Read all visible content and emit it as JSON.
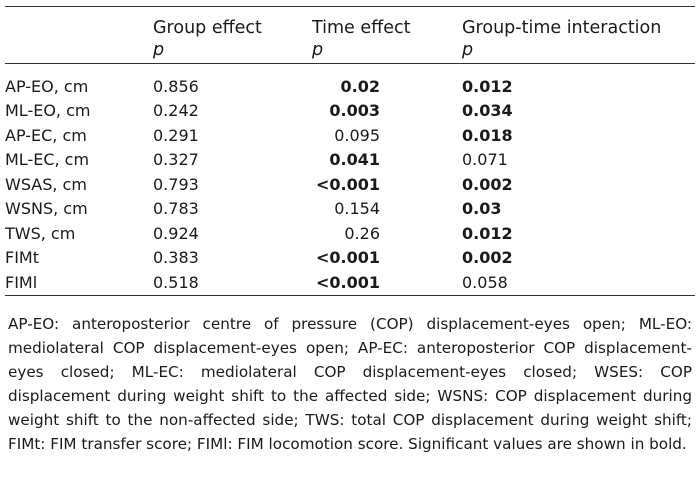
{
  "header": {
    "col1": "Group effect",
    "col2": "Time effect",
    "col3": "Group-time interaction",
    "p": "p"
  },
  "rows": [
    {
      "label": "AP-EO, cm",
      "group": "0.856",
      "time": "0.02",
      "time_bold": true,
      "interaction": "0.012",
      "interaction_bold": true
    },
    {
      "label": "ML-EO, cm",
      "group": "0.242",
      "time": "0.003",
      "time_bold": true,
      "interaction": "0.034",
      "interaction_bold": true
    },
    {
      "label": "AP-EC, cm",
      "group": "0.291",
      "time": "0.095",
      "time_bold": false,
      "interaction": "0.018",
      "interaction_bold": true
    },
    {
      "label": "ML-EC, cm",
      "group": "0.327",
      "time": "0.041",
      "time_bold": true,
      "interaction": "0.071",
      "interaction_bold": false
    },
    {
      "label": "WSAS, cm",
      "group": "0.793",
      "time": "<0.001",
      "time_bold": true,
      "interaction": "0.002",
      "interaction_bold": true
    },
    {
      "label": "WSNS, cm",
      "group": "0.783",
      "time": "0.154",
      "time_bold": false,
      "interaction": "0.03",
      "interaction_bold": true
    },
    {
      "label": "TWS, cm",
      "group": "0.924",
      "time": "0.26",
      "time_bold": false,
      "interaction": "0.012",
      "interaction_bold": true
    },
    {
      "label": "FIMt",
      "group": "0.383",
      "time": "<0.001",
      "time_bold": true,
      "interaction": "0.002",
      "interaction_bold": true
    },
    {
      "label": "FIMl",
      "group": "0.518",
      "time": "<0.001",
      "time_bold": true,
      "interaction": "0.058",
      "interaction_bold": false
    }
  ],
  "footnote": "AP-EO: anteroposterior centre of pressure (COP) displacement-eyes open; ML-EO: mediolateral COP displacement-eyes open; AP-EC: anteroposterior COP displacement-eyes closed; ML-EC: mediolateral COP displacement-eyes closed; WSES: COP displacement during weight shift to the affected side; WSNS: COP displacement during weight shift to the non-affected side; TWS: total COP displacement during weight shift; FIMt: FIM transfer score; FIMl: FIM locomotion score. Significant values are shown in bold."
}
